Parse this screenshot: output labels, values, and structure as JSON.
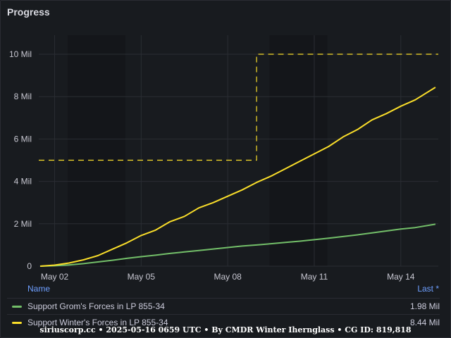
{
  "panel": {
    "title": "Progress"
  },
  "legend": {
    "name_header": "Name",
    "last_header": "Last *",
    "items": [
      {
        "label": "Support Grom's Forces in LP 855-34",
        "value": "1.98 Mil",
        "color": "#73bf69"
      },
      {
        "label": "Support Winter's Forces in LP 855-34",
        "value": "8.44 Mil",
        "color": "#fade2a"
      }
    ]
  },
  "footer": "siriuscorp.cc • 2025-05-16 0659 UTC • By CMDR Winter Iherngla­ss • CG ID: 819,818",
  "chart_data": {
    "type": "line",
    "x_ticks": [
      "May 02",
      "May 05",
      "May 08",
      "May 11",
      "May 14"
    ],
    "x_tick_days": [
      2,
      5,
      8,
      11,
      14
    ],
    "xlim": [
      1.45,
      15.3
    ],
    "y_ticks": [
      "0",
      "2 Mil",
      "4 Mil",
      "6 Mil",
      "8 Mil",
      "10 Mil"
    ],
    "y_tick_values": [
      0,
      2,
      4,
      6,
      8,
      10
    ],
    "ylim": [
      0,
      10.5
    ],
    "unit": "Mil",
    "shaded_bands": [
      [
        2.45,
        4.45
      ],
      [
        9.45,
        11.45
      ]
    ],
    "series": [
      {
        "name": "Support Grom's Forces in LP 855-34",
        "color": "#73bf69",
        "x": [
          1.5,
          2,
          2.5,
          3,
          3.5,
          4,
          4.5,
          5,
          5.5,
          6,
          6.5,
          7,
          7.5,
          8,
          8.5,
          9,
          9.5,
          10,
          10.5,
          11,
          11.5,
          12,
          12.5,
          13,
          13.5,
          14,
          14.5,
          15.2
        ],
        "y": [
          0,
          0.02,
          0.06,
          0.12,
          0.2,
          0.28,
          0.37,
          0.45,
          0.52,
          0.6,
          0.67,
          0.74,
          0.81,
          0.88,
          0.95,
          1.0,
          1.06,
          1.12,
          1.18,
          1.25,
          1.32,
          1.4,
          1.48,
          1.57,
          1.66,
          1.75,
          1.82,
          1.98
        ]
      },
      {
        "name": "Support Winter's Forces in LP 855-34",
        "color": "#fade2a",
        "x": [
          1.5,
          2,
          2.5,
          3,
          3.5,
          4,
          4.5,
          5,
          5.5,
          6,
          6.5,
          7,
          7.5,
          8,
          8.5,
          9,
          9.5,
          10,
          10.5,
          11,
          11.5,
          12,
          12.5,
          13,
          13.5,
          14,
          14.5,
          15.2
        ],
        "y": [
          0,
          0.05,
          0.15,
          0.3,
          0.5,
          0.8,
          1.1,
          1.45,
          1.7,
          2.1,
          2.35,
          2.75,
          3.0,
          3.3,
          3.6,
          3.95,
          4.25,
          4.6,
          4.95,
          5.3,
          5.65,
          6.1,
          6.45,
          6.9,
          7.2,
          7.55,
          7.85,
          8.44
        ]
      },
      {
        "name": "",
        "color": "#fade2a",
        "dashed": true,
        "x": [
          1.45,
          9.0,
          9.0,
          15.3
        ],
        "y": [
          5,
          5,
          10,
          10
        ]
      }
    ]
  }
}
